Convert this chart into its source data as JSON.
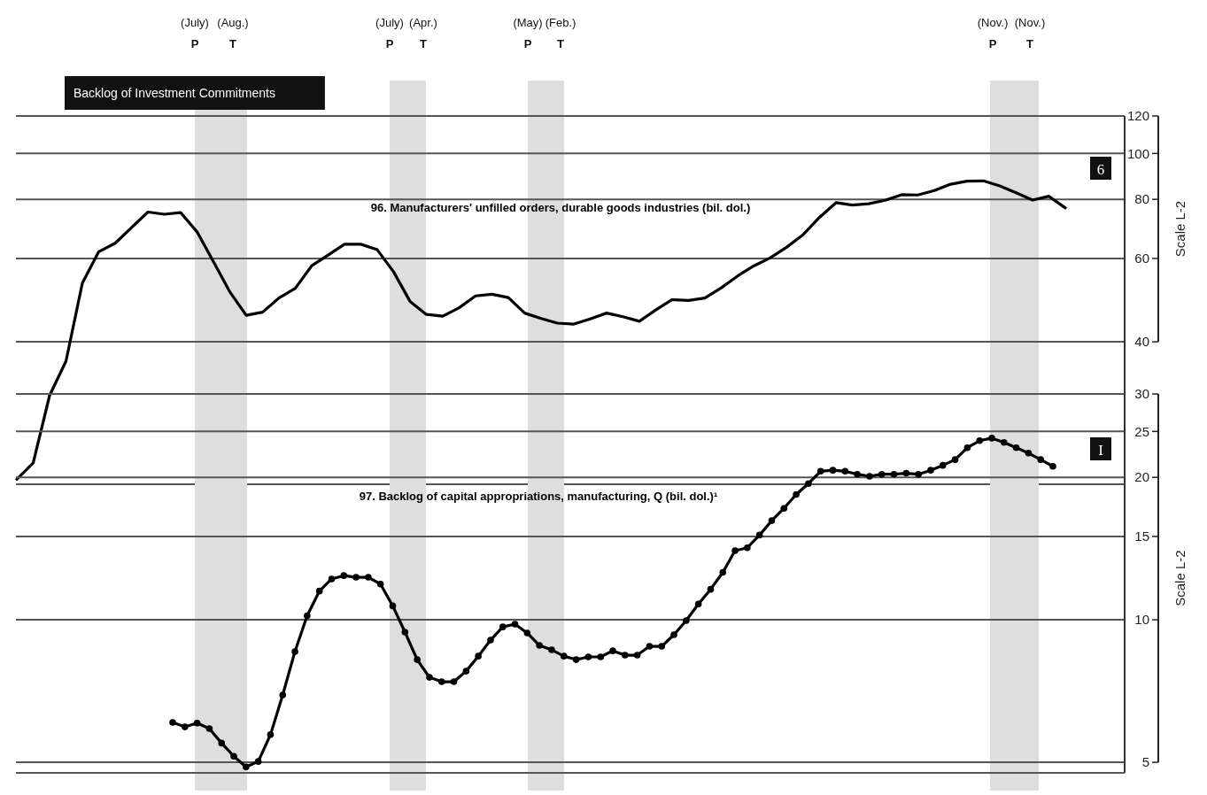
{
  "chart_data": [
    {
      "type": "line",
      "title": "Backlog of Investment Commitments",
      "ylabel": "Scale L-2",
      "annotations": [
        "(July) P",
        "(Aug.) T",
        "(July) P",
        "(Apr.) T",
        "(May) P",
        "(Feb.) T",
        "(Nov.) P",
        "(Nov.) T",
        "6"
      ],
      "categories": [
        null,
        null,
        null,
        null,
        null,
        null,
        null,
        null,
        null,
        null,
        null,
        null,
        null,
        null,
        null,
        null,
        null,
        null,
        null,
        null,
        null,
        null,
        null,
        null,
        null,
        null,
        null,
        null,
        null,
        null,
        null,
        null,
        null,
        null,
        null,
        null,
        null,
        null,
        null,
        null,
        null,
        null,
        null,
        null,
        null,
        null,
        null,
        null,
        null,
        null,
        null,
        null,
        null,
        null,
        null,
        null,
        null,
        null,
        null,
        null,
        null,
        null,
        null,
        null,
        null
      ],
      "ylim": [
        20,
        120
      ],
      "yticks": [
        40,
        60,
        80,
        100,
        120
      ],
      "log": true,
      "grid": "y",
      "series": [
        {
          "name": "96. Manufacturers' unfilled orders, durable goods industries (bil. dol.)",
          "color": "#000000",
          "marker": "none",
          "values": [
            20.5,
            22.2,
            30.8,
            36.4,
            53.2,
            62.0,
            64.6,
            69.7,
            75.2,
            74.4,
            75.0,
            68.3,
            59.1,
            51.0,
            45.5,
            46.2,
            49.5,
            51.9,
            57.9,
            61.0,
            64.3,
            64.3,
            62.6,
            56.2,
            48.7,
            45.7,
            45.3,
            47.2,
            50.0,
            50.4,
            49.6,
            46.0,
            44.8,
            43.8,
            43.6,
            44.7,
            46.0,
            45.2,
            44.2,
            46.7,
            49.1,
            48.9,
            49.5,
            52.0,
            55.1,
            57.9,
            60.2,
            63.4,
            67.4,
            73.3,
            78.7,
            77.8,
            78.3,
            79.6,
            81.8,
            81.7,
            83.5,
            86.1,
            87.4,
            87.5,
            85.4,
            82.6,
            79.7,
            81.2,
            76.7
          ]
        }
      ]
    },
    {
      "type": "line",
      "ylabel": "Scale L-2",
      "annotations": [
        "I"
      ],
      "categories": [
        null,
        null,
        null,
        null,
        null,
        null,
        null,
        null,
        null,
        null,
        null,
        null,
        null,
        null,
        null,
        null,
        null,
        null,
        null,
        null,
        null,
        null,
        null,
        null,
        null,
        null,
        null,
        null,
        null,
        null,
        null,
        null,
        null,
        null,
        null,
        null,
        null,
        null,
        null,
        null,
        null,
        null,
        null,
        null,
        null,
        null,
        null,
        null,
        null,
        null,
        null,
        null,
        null,
        null,
        null,
        null,
        null,
        null,
        null,
        null,
        null,
        null,
        null,
        null,
        null,
        null,
        null,
        null,
        null,
        null,
        null,
        null,
        null
      ],
      "ylim": [
        4.75,
        30
      ],
      "yticks": [
        5,
        10,
        15,
        20,
        25,
        30
      ],
      "log": true,
      "grid": "y",
      "series": [
        {
          "name": "97. Backlog of capital appropriations, manufacturing, Q (bil. dol.)¹",
          "color": "#000000",
          "marker": "circle",
          "values": [
            6.07,
            5.94,
            6.05,
            5.89,
            5.49,
            5.15,
            4.89,
            5.02,
            5.72,
            6.94,
            8.57,
            10.2,
            11.5,
            12.2,
            12.4,
            12.3,
            12.3,
            11.9,
            10.7,
            9.42,
            8.24,
            7.56,
            7.4,
            7.4,
            7.79,
            8.38,
            9.06,
            9.66,
            9.79,
            9.38,
            8.83,
            8.64,
            8.38,
            8.24,
            8.35,
            8.35,
            8.6,
            8.42,
            8.42,
            8.79,
            8.79,
            9.3,
            9.96,
            10.8,
            11.6,
            12.6,
            14.0,
            14.2,
            15.1,
            16.2,
            17.2,
            18.4,
            19.4,
            20.6,
            20.7,
            20.6,
            20.3,
            20.1,
            20.3,
            20.3,
            20.4,
            20.3,
            20.7,
            21.2,
            21.8,
            23.1,
            23.9,
            24.2,
            23.7,
            23.1,
            22.5,
            21.8,
            21.1
          ]
        }
      ]
    }
  ]
}
